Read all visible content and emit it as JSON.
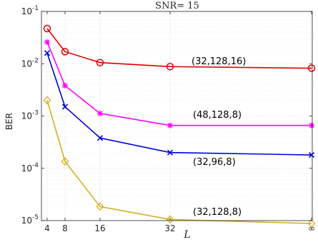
{
  "chart_data": {
    "type": "line",
    "title": "SNR= 15",
    "xlabel": "L",
    "ylabel": "BER",
    "yscale": "log",
    "ylim": [
      1e-05,
      0.1
    ],
    "x_tick_labels": [
      "4",
      "8",
      "16",
      "32",
      "∞"
    ],
    "x": [
      "4",
      "8",
      "16",
      "32",
      "∞"
    ],
    "y_tick_labels": [
      {
        "base": "10",
        "exp": "-5",
        "value": 1e-05
      },
      {
        "base": "10",
        "exp": "-4",
        "value": 0.0001
      },
      {
        "base": "10",
        "exp": "-3",
        "value": 0.001
      },
      {
        "base": "10",
        "exp": "-2",
        "value": 0.01
      },
      {
        "base": "10",
        "exp": "-1",
        "value": 0.1
      }
    ],
    "grid": true,
    "series": [
      {
        "name": "(32,128,16)",
        "color": "#e00000",
        "marker": "circle",
        "values": [
          0.047,
          0.017,
          0.0105,
          0.0088,
          0.0082
        ]
      },
      {
        "name": "(48,128,8)",
        "color": "#ff00ff",
        "marker": "asterisk",
        "values": [
          0.026,
          0.0038,
          0.00112,
          0.00066,
          0.00066
        ]
      },
      {
        "name": "(32,96,8)",
        "color": "#0000e0",
        "marker": "x",
        "values": [
          0.016,
          0.0015,
          0.00038,
          0.0002,
          0.00018
        ]
      },
      {
        "name": "(32,128,8)",
        "color": "#d4b020",
        "marker": "diamond",
        "values": [
          0.002,
          0.000135,
          1.85e-05,
          1.05e-05,
          8.8e-06
        ]
      }
    ]
  }
}
